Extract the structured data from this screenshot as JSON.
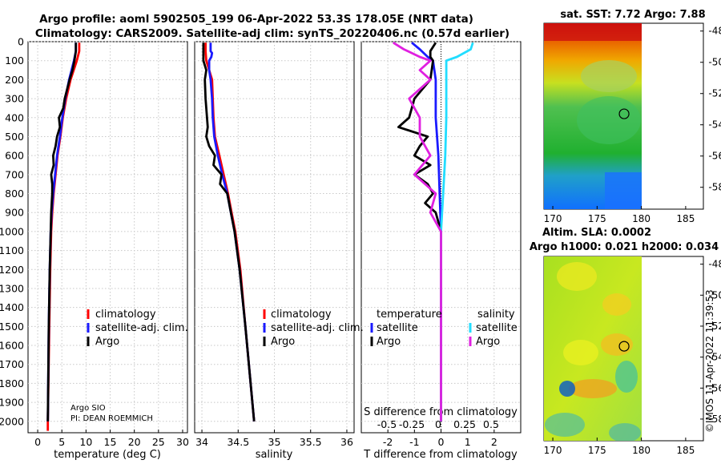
{
  "title_line1": "Argo profile: aoml 5902505_199 06-Apr-2022 53.3S 178.05E (NRT data)",
  "title_line2": "Climatology: CARS2009. Satellite-adj clim: synTS_20220406.nc (0.57d earlier)",
  "footer_stamp": "©IMOS 11-Apr-2022 11:39:53",
  "credit_line1": "Argo SIO",
  "credit_line2": "PI: DEAN ROEMMICH",
  "colors": {
    "climatology": "#ff0000",
    "satellite_adj": "#1a1aff",
    "argo": "#000000",
    "sal_satellite": "#22ddff",
    "sal_argo": "#e020e0"
  },
  "chart_data": [
    {
      "type": "line",
      "id": "temperature",
      "xlabel": "temperature (deg C)",
      "ylabel": "",
      "xlim": [
        -2,
        31
      ],
      "ylim": [
        2060,
        0
      ],
      "xticks": [
        "0",
        "5",
        "10",
        "15",
        "20",
        "25",
        "30"
      ],
      "yticks": [
        "0",
        "100",
        "200",
        "300",
        "400",
        "500",
        "600",
        "700",
        "800",
        "900",
        "1000",
        "1100",
        "1200",
        "1300",
        "1400",
        "1500",
        "1600",
        "1700",
        "1800",
        "1900",
        "2000"
      ],
      "legend": [
        "climatology",
        "satellite-adj. clim.",
        "Argo"
      ],
      "series": [
        {
          "name": "climatology",
          "depth": [
            5,
            50,
            100,
            200,
            300,
            400,
            500,
            600,
            700,
            800,
            900,
            1000,
            1200,
            1500,
            2000,
            2050
          ],
          "values": [
            8.6,
            8.6,
            8.1,
            6.8,
            5.9,
            5.2,
            4.7,
            4.1,
            3.7,
            3.3,
            3.0,
            2.8,
            2.6,
            2.4,
            2.1,
            2.1
          ]
        },
        {
          "name": "satellite-adj. clim.",
          "depth": [
            5,
            50,
            100,
            200,
            300,
            400,
            500,
            600,
            700,
            800,
            900,
            1000,
            1200,
            1500,
            2000
          ],
          "values": [
            7.9,
            7.9,
            7.5,
            6.5,
            5.7,
            5.1,
            4.6,
            4.0,
            3.6,
            3.2,
            2.9,
            2.7,
            2.5,
            2.3,
            2.1
          ]
        },
        {
          "name": "Argo",
          "depth": [
            5,
            50,
            100,
            150,
            200,
            300,
            350,
            400,
            450,
            500,
            550,
            600,
            650,
            700,
            750,
            800,
            900,
            1000,
            1200,
            1500,
            2000
          ],
          "values": [
            7.9,
            7.9,
            7.6,
            7.2,
            6.6,
            5.6,
            5.3,
            4.4,
            4.6,
            4.0,
            3.7,
            3.2,
            3.3,
            2.8,
            3.0,
            3.0,
            2.8,
            2.7,
            2.5,
            2.3,
            2.1
          ]
        }
      ]
    },
    {
      "type": "line",
      "id": "salinity",
      "xlabel": "salinity",
      "xlim": [
        33.9,
        36.1
      ],
      "ylim": [
        2060,
        0
      ],
      "xticks": [
        "34",
        "34.5",
        "35",
        "35.5",
        "36"
      ],
      "legend": [
        "climatology",
        "satellite-adj. clim.",
        "Argo"
      ],
      "series": [
        {
          "name": "climatology",
          "depth": [
            5,
            50,
            100,
            150,
            200,
            300,
            400,
            500,
            600,
            700,
            800,
            900,
            1000,
            1200,
            1500,
            2000
          ],
          "values": [
            34.05,
            34.05,
            34.06,
            34.1,
            34.14,
            34.15,
            34.16,
            34.18,
            34.24,
            34.3,
            34.36,
            34.41,
            34.46,
            34.53,
            34.6,
            34.72
          ]
        },
        {
          "name": "satellite-adj. clim.",
          "depth": [
            5,
            50,
            60,
            80,
            100,
            150,
            200,
            300,
            400,
            500,
            600,
            700,
            800,
            900,
            1000,
            1200,
            1500,
            2000
          ],
          "values": [
            34.12,
            34.12,
            34.14,
            34.13,
            34.1,
            34.1,
            34.12,
            34.14,
            34.15,
            34.17,
            34.22,
            34.28,
            34.35,
            34.4,
            34.45,
            34.52,
            34.6,
            34.72
          ]
        },
        {
          "name": "Argo",
          "depth": [
            5,
            50,
            100,
            150,
            200,
            300,
            400,
            450,
            500,
            550,
            600,
            650,
            700,
            750,
            800,
            900,
            1000,
            1200,
            1500,
            2000
          ],
          "values": [
            34.02,
            34.02,
            34.02,
            34.06,
            34.04,
            34.05,
            34.07,
            34.08,
            34.06,
            34.1,
            34.18,
            34.16,
            34.27,
            34.25,
            34.35,
            34.4,
            34.45,
            34.52,
            34.6,
            34.72
          ]
        }
      ]
    },
    {
      "type": "line",
      "id": "difference",
      "xlabel": "T difference from climatology",
      "xlabel_top": "S difference from climatology",
      "xlim": [
        -3,
        3
      ],
      "ylim": [
        2060,
        0
      ],
      "xticks": [
        "-2",
        "-1",
        "0",
        "1",
        "2"
      ],
      "xticks_top": [
        "-0.5",
        "-0.25",
        "0",
        "0.25",
        "0.5"
      ],
      "legend_left_title": "temperature",
      "legend_right_title": "salinity",
      "legend_left": [
        "satellite",
        "Argo"
      ],
      "legend_right": [
        "satellite",
        "Argo"
      ],
      "series": [
        {
          "name": "temperature satellite",
          "depth": [
            5,
            40,
            80,
            100,
            200,
            400,
            600,
            800,
            1000,
            2000
          ],
          "values": [
            -1.1,
            -0.8,
            -0.5,
            -0.3,
            -0.2,
            -0.2,
            -0.1,
            -0.05,
            0,
            0
          ]
        },
        {
          "name": "temperature Argo",
          "depth": [
            5,
            50,
            80,
            100,
            200,
            300,
            400,
            450,
            500,
            550,
            600,
            650,
            700,
            750,
            800,
            850,
            900,
            1000,
            1500,
            2000
          ],
          "values": [
            -0.2,
            -0.4,
            -0.4,
            -0.3,
            -0.4,
            -1.0,
            -1.2,
            -1.6,
            -0.5,
            -0.8,
            -1.0,
            -0.4,
            -1.0,
            -0.5,
            -0.3,
            -0.6,
            -0.2,
            0,
            0,
            0
          ]
        },
        {
          "name": "salinity satellite",
          "depth": [
            5,
            40,
            80,
            100,
            200,
            400,
            600,
            800,
            1000,
            2000
          ],
          "values": [
            0.3,
            0.28,
            0.15,
            0.05,
            0.05,
            0.05,
            0.04,
            0.02,
            0,
            0
          ]
        },
        {
          "name": "salinity Argo",
          "depth": [
            5,
            40,
            80,
            100,
            150,
            200,
            300,
            400,
            500,
            600,
            700,
            800,
            900,
            1000,
            2000
          ],
          "values": [
            -0.45,
            -0.35,
            -0.2,
            -0.1,
            -0.2,
            -0.1,
            -0.3,
            -0.2,
            -0.2,
            -0.1,
            -0.25,
            -0.05,
            -0.1,
            0,
            0
          ]
        }
      ]
    },
    {
      "type": "heatmap",
      "id": "sst_map",
      "title": "sat. SST: 7.72 Argo: 7.88",
      "xlim": [
        169,
        187
      ],
      "ylim": [
        -59.4,
        -47.5
      ],
      "xticks": [
        "170",
        "175",
        "180",
        "185"
      ],
      "yticks": [
        "-48",
        "-50",
        "-52",
        "-54",
        "-56",
        "-58"
      ],
      "argo_position": {
        "lon": 178.05,
        "lat": -53.3
      }
    },
    {
      "type": "heatmap",
      "id": "sla_map",
      "title_line1": "Altim. SLA: 0.0002",
      "title_line2": "Argo h1000: 0.021 h2000: 0.034",
      "xlim": [
        169,
        187
      ],
      "ylim": [
        -59.4,
        -47.5
      ],
      "xticks": [
        "170",
        "175",
        "180",
        "185"
      ],
      "yticks": [
        "-48",
        "-50",
        "-52",
        "-54",
        "-56",
        "-58"
      ],
      "argo_position": {
        "lon": 178.05,
        "lat": -53.3
      }
    }
  ]
}
